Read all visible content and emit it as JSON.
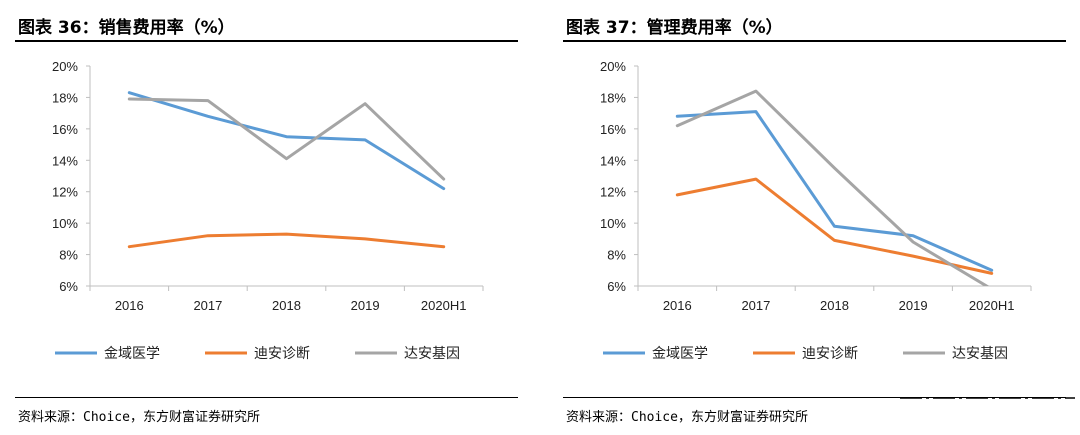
{
  "panels": [
    {
      "title": "图表 36：销售费用率（%）",
      "source": "资料来源：Choice，东方财富证券研究所"
    },
    {
      "title": "图表 37：管理费用率（%）",
      "source": "资料来源：Choice，东方财富证券研究所"
    }
  ],
  "chart_data": [
    {
      "type": "line",
      "title": "图表 36：销售费用率（%）",
      "categories": [
        "2016",
        "2017",
        "2018",
        "2019",
        "2020H1"
      ],
      "ylim": [
        6,
        20
      ],
      "yticks": [
        "20%",
        "18%",
        "16%",
        "14%",
        "12%",
        "10%",
        "8%",
        "6%"
      ],
      "grid": false,
      "legend": "bottom",
      "series": [
        {
          "name": "金域医学",
          "color": "#5b9bd5",
          "values": [
            18.3,
            16.8,
            15.5,
            15.3,
            12.2
          ]
        },
        {
          "name": "迪安诊断",
          "color": "#ed7d31",
          "values": [
            8.5,
            9.2,
            9.3,
            9.0,
            8.5
          ]
        },
        {
          "name": "达安基因",
          "color": "#a5a5a5",
          "values": [
            17.9,
            17.8,
            14.1,
            17.6,
            12.8
          ]
        }
      ]
    },
    {
      "type": "line",
      "title": "图表 37：管理费用率（%）",
      "categories": [
        "2016",
        "2017",
        "2018",
        "2019",
        "2020H1"
      ],
      "ylim": [
        6,
        20
      ],
      "yticks": [
        "20%",
        "18%",
        "16%",
        "14%",
        "12%",
        "10%",
        "8%",
        "6%"
      ],
      "grid": false,
      "legend": "bottom",
      "series": [
        {
          "name": "金域医学",
          "color": "#5b9bd5",
          "values": [
            16.8,
            17.1,
            9.8,
            9.2,
            7.0
          ]
        },
        {
          "name": "迪安诊断",
          "color": "#ed7d31",
          "values": [
            11.8,
            12.8,
            8.9,
            7.9,
            6.8
          ]
        },
        {
          "name": "达安基因",
          "color": "#a5a5a5",
          "values": [
            16.2,
            18.4,
            13.5,
            8.8,
            5.8
          ]
        }
      ]
    }
  ]
}
